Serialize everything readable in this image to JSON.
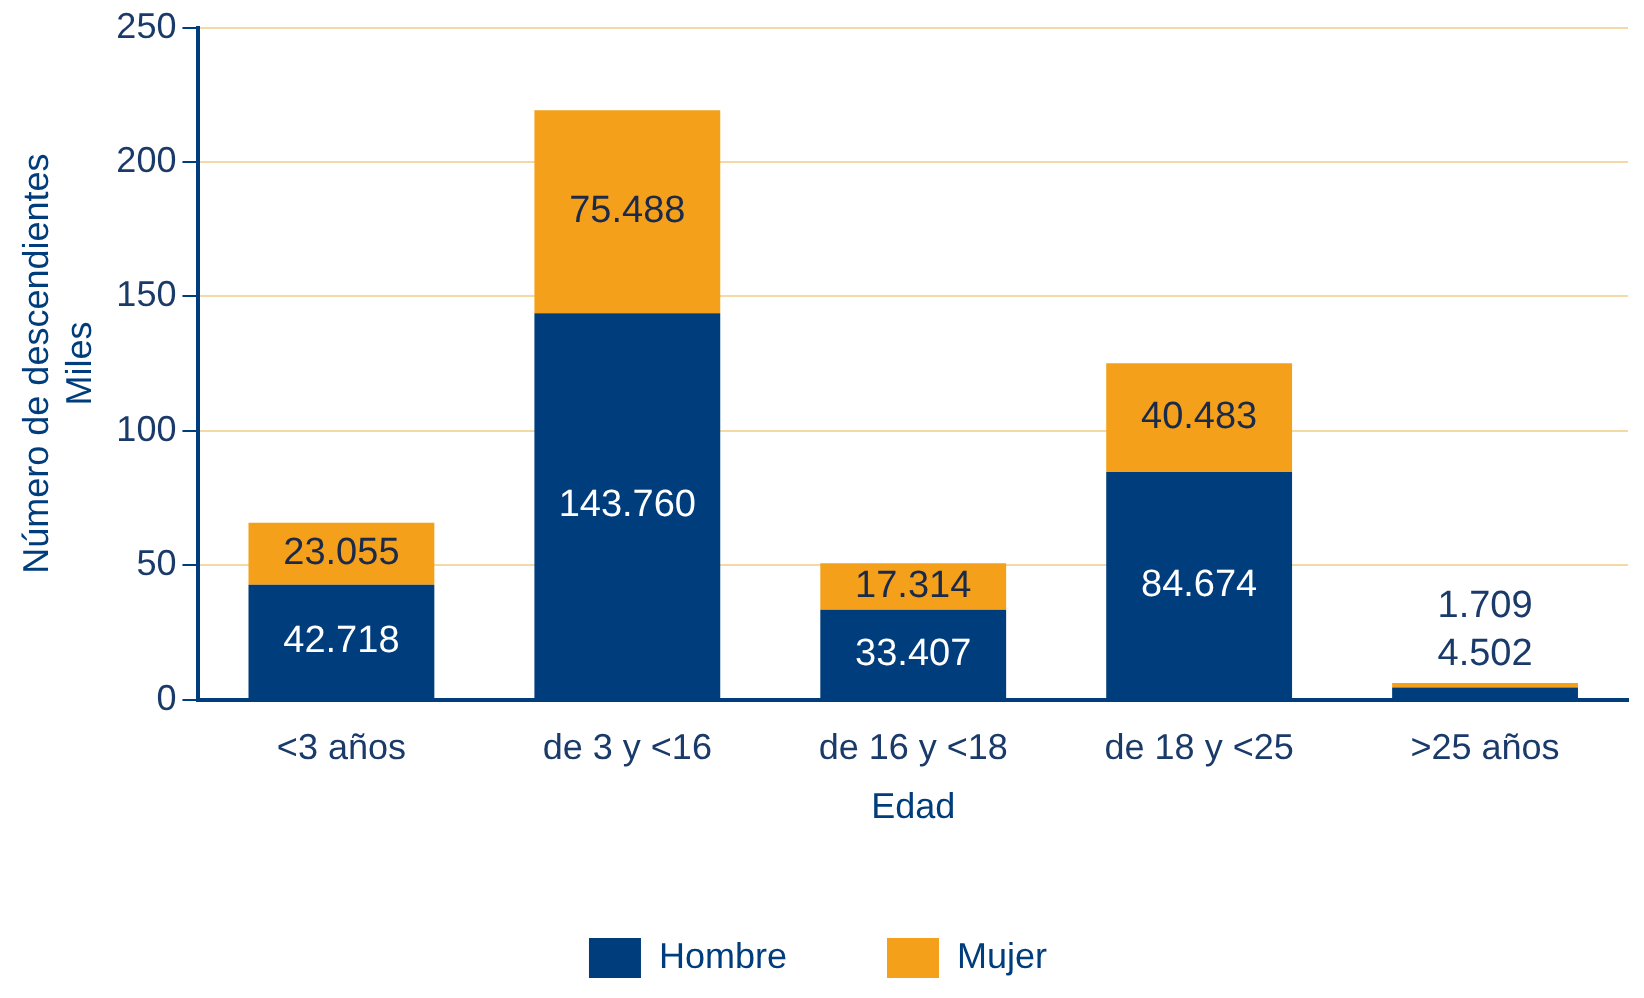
{
  "chart_data": {
    "type": "bar",
    "stacked": true,
    "xlabel": "Edad",
    "ylabel": "Número de descendientes\nMiles",
    "categories": [
      "<3 años",
      "de 3 y <16",
      "de 16 y <18",
      "de 18 y <25",
      ">25 años"
    ],
    "series": [
      {
        "name": "Hombre",
        "color": "#003d7c",
        "values": [
          42.718,
          143.76,
          33.407,
          84.674,
          4.502
        ],
        "value_labels": [
          "42.718",
          "143.760",
          "33.407",
          "84.674",
          "4.502"
        ]
      },
      {
        "name": "Mujer",
        "color": "#f5a01a",
        "values": [
          23.055,
          75.488,
          17.314,
          40.483,
          1.709
        ],
        "value_labels": [
          "23.055",
          "75.488",
          "17.314",
          "40.483",
          "1.709"
        ]
      }
    ],
    "ylim": [
      0,
      250
    ],
    "yticks": [
      0,
      50,
      100,
      150,
      200,
      250
    ],
    "grid": "y",
    "legend": "bottom"
  }
}
